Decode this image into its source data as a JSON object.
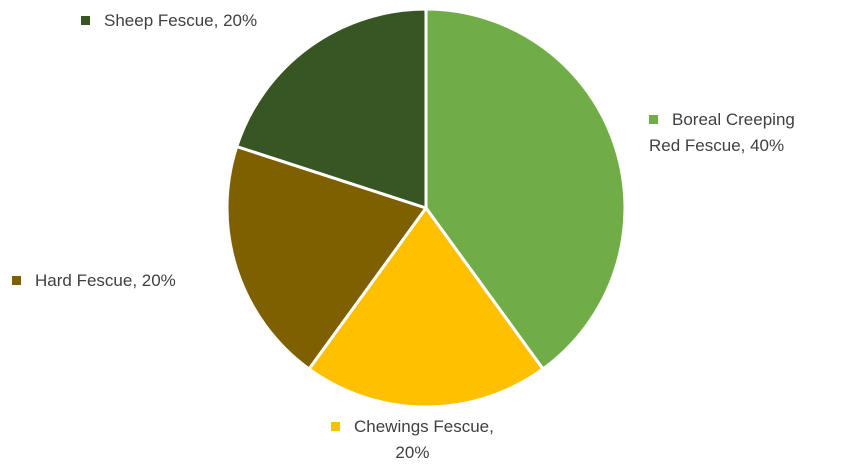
{
  "chart_data": {
    "type": "pie",
    "title": "",
    "slices": [
      {
        "label_lines": [
          "Boreal Creeping",
          "Red Fescue, 40%"
        ],
        "value": 40,
        "color": "#70AD47"
      },
      {
        "label_lines": [
          "Chewings Fescue,",
          "20%"
        ],
        "value": 20,
        "color": "#FFC000"
      },
      {
        "label_lines": [
          "Hard Fescue, 20%"
        ],
        "value": 20,
        "color": "#7F6000"
      },
      {
        "label_lines": [
          "Sheep Fescue, 20%"
        ],
        "value": 20,
        "color": "#375623"
      }
    ],
    "start_angle": "12 o'clock",
    "direction": "clockwise",
    "labels_show": [
      "category name",
      "percentage"
    ],
    "legend_key_markers": true
  }
}
